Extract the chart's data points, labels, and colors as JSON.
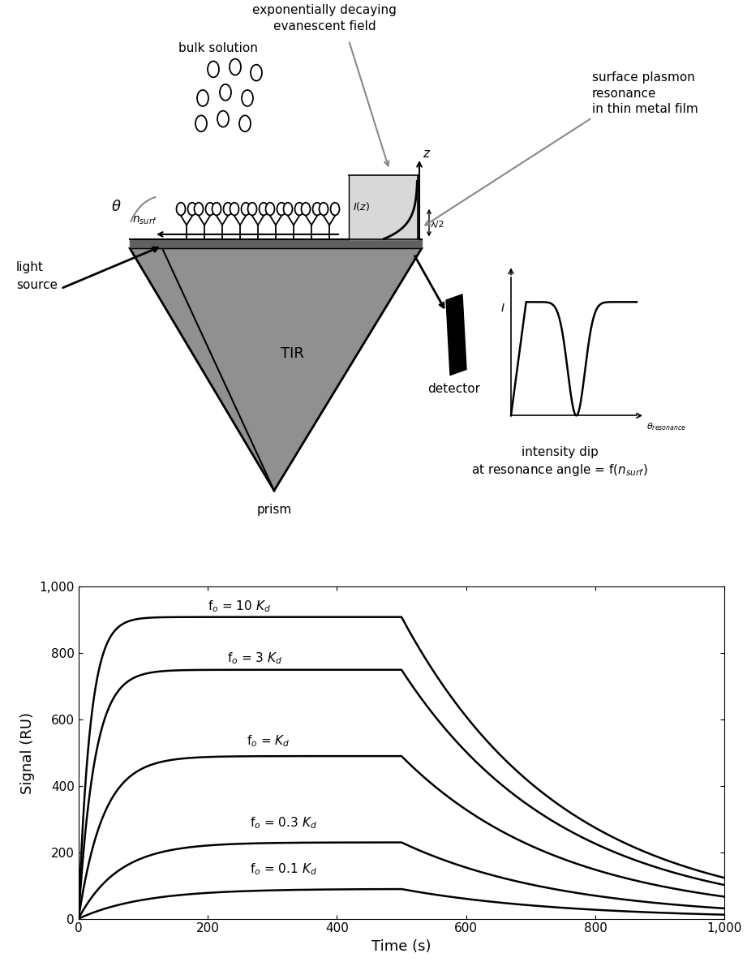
{
  "fig_width": 9.21,
  "fig_height": 11.86,
  "dpi": 100,
  "curves": [
    {
      "kon": 0.055,
      "koff": 0.004,
      "plateau": 909,
      "t_on": 500
    },
    {
      "kon": 0.04,
      "koff": 0.004,
      "plateau": 750,
      "t_on": 500
    },
    {
      "kon": 0.026,
      "koff": 0.004,
      "plateau": 490,
      "t_on": 500
    },
    {
      "kon": 0.016,
      "koff": 0.004,
      "plateau": 230,
      "t_on": 500
    },
    {
      "kon": 0.01,
      "koff": 0.004,
      "plateau": 90,
      "t_on": 500
    }
  ],
  "curve_labels": [
    [
      200,
      940,
      "f$_o$ = 10 $K_d$"
    ],
    [
      230,
      785,
      "f$_o$ = 3 $K_d$"
    ],
    [
      260,
      535,
      "f$_o$ = $K_d$"
    ],
    [
      265,
      288,
      "f$_o$ = 0.3 $K_d$"
    ],
    [
      265,
      148,
      "f$_o$ = 0.1 $K_d$"
    ]
  ],
  "xlabel": "Time (s)",
  "ylabel": "Signal (RU)",
  "xlim": [
    0,
    1000
  ],
  "ylim": [
    0,
    1000
  ],
  "xticks": [
    0,
    200,
    400,
    600,
    800,
    1000
  ],
  "yticks": [
    0,
    200,
    400,
    600,
    800,
    1000
  ],
  "line_color": "black",
  "line_width": 1.8,
  "font_size_labels": 13,
  "font_size_ticks": 11,
  "gray_arrow": "#888888",
  "prism_gray": "#909090",
  "prism_dark": "#707070",
  "surface_gray": "#606060",
  "efield_light": "#d8d8d8"
}
